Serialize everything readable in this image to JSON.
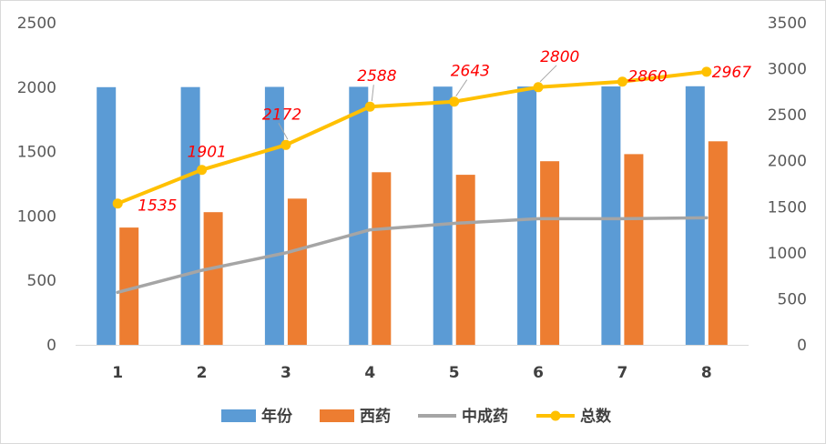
{
  "chart_data": {
    "type": "bar",
    "categories": [
      "1",
      "2",
      "3",
      "4",
      "5",
      "6",
      "7",
      "8"
    ],
    "series": [
      {
        "name": "年份",
        "type": "bar",
        "axis": "left",
        "color": "#5b9bd5",
        "values": [
          2000,
          2001,
          2002,
          2003,
          2004,
          2005,
          2006,
          2007
        ]
      },
      {
        "name": "西药",
        "type": "bar",
        "axis": "left",
        "color": "#ed7d31",
        "values": [
          910,
          1030,
          1135,
          1340,
          1320,
          1425,
          1480,
          1580
        ]
      },
      {
        "name": "中成药",
        "type": "line",
        "axis": "right",
        "color": "#a5a5a5",
        "values": [
          570,
          810,
          1000,
          1250,
          1320,
          1370,
          1370,
          1380
        ]
      },
      {
        "name": "总数",
        "type": "line",
        "axis": "right",
        "color": "#ffc000",
        "marker": "circle",
        "values": [
          1535,
          1901,
          2172,
          2588,
          2643,
          2800,
          2860,
          2967
        ],
        "data_labels": [
          "1535",
          "1901",
          "2172",
          "2588",
          "2643",
          "2800",
          "2860",
          "2967"
        ]
      }
    ],
    "left_axis": {
      "min": 0,
      "max": 2500,
      "step": 500,
      "tick_labels": [
        "0",
        "500",
        "1000",
        "1500",
        "2000",
        "2500"
      ]
    },
    "right_axis": {
      "min": 0,
      "max": 3500,
      "step": 500,
      "tick_labels": [
        "0",
        "500",
        "1000",
        "1500",
        "2000",
        "2500",
        "3000",
        "3500"
      ]
    },
    "grid": false,
    "legend_position": "bottom",
    "data_label_color": "#ff0000"
  }
}
